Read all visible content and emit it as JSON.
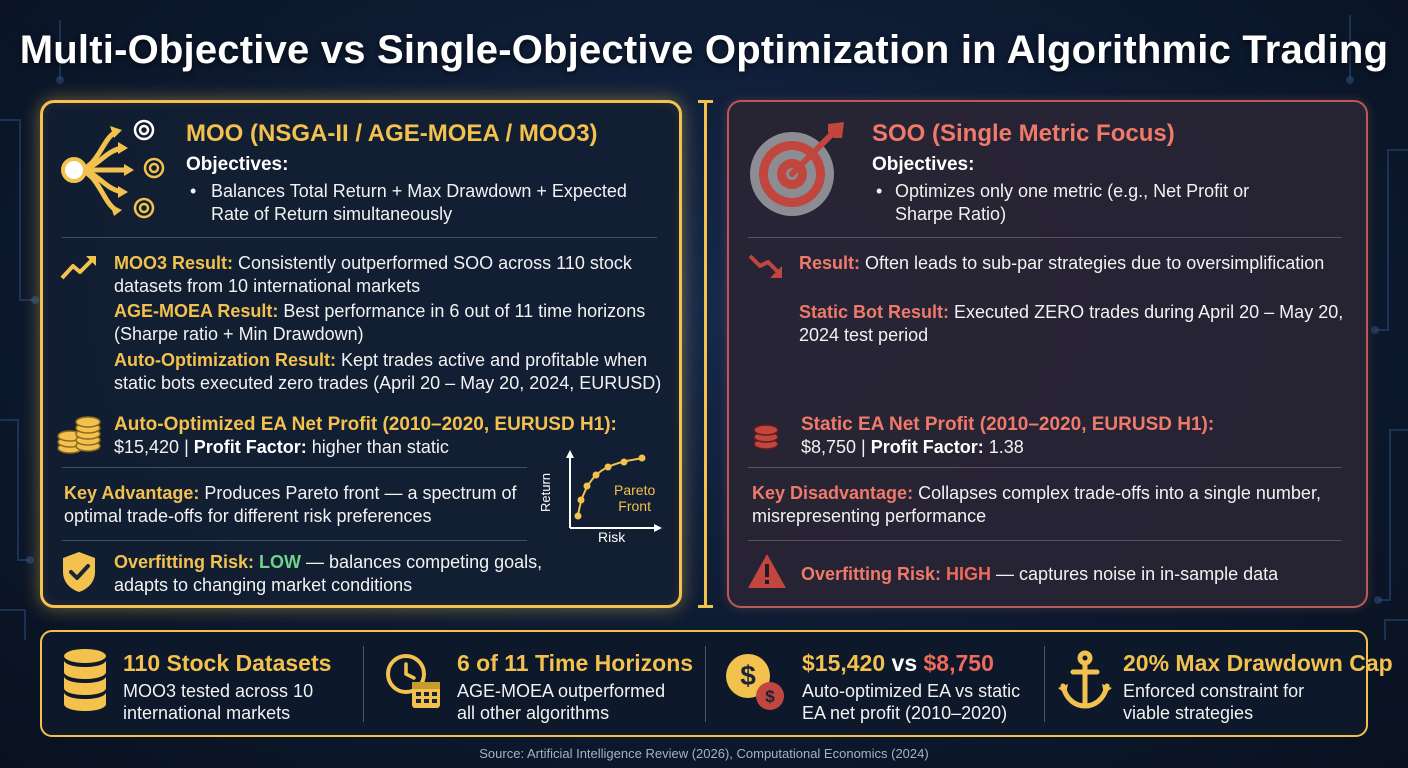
{
  "title": "Multi-Objective vs Single-Objective Optimization in Algorithmic Trading",
  "colors": {
    "gold": "#f2c14e",
    "red": "#ef6a5a",
    "green": "#6fd38a",
    "background": "#0d1a30"
  },
  "moo": {
    "heading": "MOO (NSGA-II / AGE-MOEA / MOO3)",
    "objectives_label": "Objectives:",
    "objectives_bullet_1": "Balances Total Return + Max Drawdown + Expected",
    "objectives_bullet_2": "Rate of Return simultaneously",
    "r1_label": "MOO3 Result:",
    "r1_text_1": " Consistently outperformed SOO across 110 stock",
    "r1_text_2": "datasets from 10 international markets",
    "r2_label": "AGE-MOEA Result:",
    "r2_text_1": " Best performance in 6 out of 11 time horizons",
    "r2_text_2": "(Sharpe ratio + Min Drawdown)",
    "r3_label": "Auto-Optimization Result:",
    "r3_text_1": " Kept trades active and profitable when",
    "r3_text_2": "static bots executed zero trades (April 20 – May 20, 2024, EURUSD)",
    "profit_label": "Auto-Optimized EA Net Profit (2010–2020, EURUSD H1):",
    "profit_value": "$15,420 | ",
    "pf_label": "Profit Factor:",
    "pf_value": " higher than static",
    "adv_label": "Key Advantage:",
    "adv_text_1": " Produces Pareto front — a spectrum of",
    "adv_text_2": "optimal trade-offs for different risk preferences",
    "pareto_ylabel": "Return",
    "pareto_xlabel": "Risk",
    "pareto_label_1": "Pareto",
    "pareto_label_2": "Front",
    "risk_label": "Overfitting Risk:",
    "risk_level": "LOW",
    "risk_text_1": " — balances competing goals,",
    "risk_text_2": "adapts to changing market conditions"
  },
  "soo": {
    "heading": "SOO (Single Metric Focus)",
    "objectives_label": "Objectives:",
    "objectives_bullet_1": "Optimizes only one metric (e.g., Net Profit or",
    "objectives_bullet_2": "Sharpe Ratio)",
    "r1_label": "Result:",
    "r1_text": " Often leads to sub-par strategies due to oversimplification",
    "r2_label": "Static Bot Result:",
    "r2_text_1": " Executed ZERO trades during April 20 – May 20,",
    "r2_text_2": "2024 test period",
    "profit_label": "Static EA Net Profit (2010–2020, EURUSD H1):",
    "profit_value": "$8,750 | ",
    "pf_label": "Profit Factor:",
    "pf_value": " 1.38",
    "dis_label": "Key Disadvantage:",
    "dis_text_1": " Collapses complex trade-offs into a single number,",
    "dis_text_2": "misrepresenting performance",
    "risk_label": "Overfitting Risk:",
    "risk_level": "HIGH",
    "risk_text": " — captures noise in in-sample data"
  },
  "stats": [
    {
      "big_1": "110",
      "big_2": " Stock Datasets",
      "sub_1": "MOO3 tested across 10",
      "sub_2": "international markets",
      "icon": "database-icon"
    },
    {
      "big_1": "6 of 11",
      "big_2": " Time Horizons",
      "sub_1": "AGE-MOEA outperformed",
      "sub_2": "all other algorithms",
      "icon": "clock-calendar-icon"
    },
    {
      "big_1": "$15,420",
      "big_2": " vs ",
      "big_3": "$8,750",
      "sub_1": "Auto-optimized EA vs static",
      "sub_2": "EA net profit (2010–2020)",
      "icon": "dollar-coins-icon"
    },
    {
      "big_1": "20%",
      "big_2": " Max Drawdown Cap",
      "sub_1": "Enforced constraint for",
      "sub_2": "viable strategies",
      "icon": "anchor-icon"
    }
  ],
  "source": "Source: Artificial Intelligence Review (2026), Computational Economics (2024)"
}
